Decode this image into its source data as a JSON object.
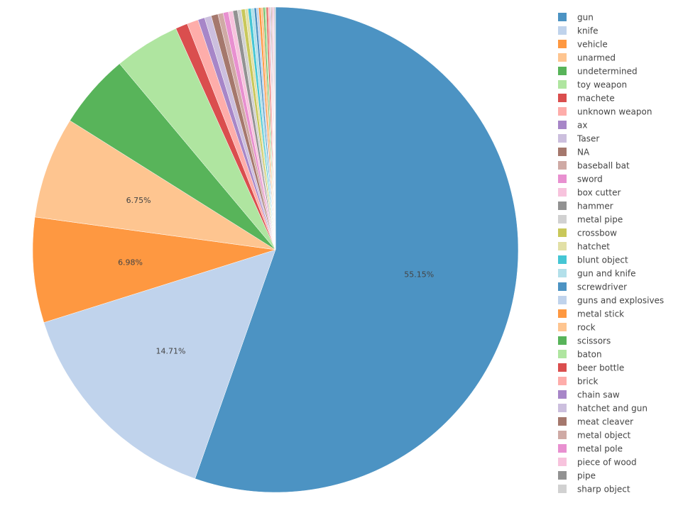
{
  "chart_data": {
    "type": "pie",
    "direction": "clockwise",
    "start": "top",
    "label_threshold_percent": 5,
    "legend_placement": "right",
    "slices": [
      {
        "label": "gun",
        "percent": 55.15,
        "color": "#4c93c3"
      },
      {
        "label": "knife",
        "percent": 14.71,
        "color": "#c0d3ec"
      },
      {
        "label": "vehicle",
        "percent": 6.98,
        "color": "#fe9841"
      },
      {
        "label": "unarmed",
        "percent": 6.75,
        "color": "#fec590"
      },
      {
        "label": "undetermined",
        "percent": 4.95,
        "color": "#58b45a"
      },
      {
        "label": "toy weapon",
        "percent": 4.35,
        "color": "#afe5a0"
      },
      {
        "label": "machete",
        "percent": 0.8,
        "color": "#da4e4e"
      },
      {
        "label": "unknown weapon",
        "percent": 0.75,
        "color": "#feadaa"
      },
      {
        "label": "ax",
        "percent": 0.45,
        "color": "#a786c8"
      },
      {
        "label": "Taser",
        "percent": 0.45,
        "color": "#ccbfde"
      },
      {
        "label": "NA",
        "percent": 0.45,
        "color": "#a5786d"
      },
      {
        "label": "baseball bat",
        "percent": 0.35,
        "color": "#cfaaa5"
      },
      {
        "label": "sword",
        "percent": 0.35,
        "color": "#e890d0"
      },
      {
        "label": "box cutter",
        "percent": 0.3,
        "color": "#f7c3dd"
      },
      {
        "label": "hammer",
        "percent": 0.3,
        "color": "#929292"
      },
      {
        "label": "metal pipe",
        "percent": 0.25,
        "color": "#d1d1d1"
      },
      {
        "label": "crossbow",
        "percent": 0.25,
        "color": "#c9c85a"
      },
      {
        "label": "hatchet",
        "percent": 0.2,
        "color": "#e2e0a6"
      },
      {
        "label": "blunt object",
        "percent": 0.2,
        "color": "#45c6d4"
      },
      {
        "label": "gun and knife",
        "percent": 0.2,
        "color": "#b3e0ea"
      },
      {
        "label": "screwdriver",
        "percent": 0.15,
        "color": "#4c93c3"
      },
      {
        "label": "guns and explosives",
        "percent": 0.15,
        "color": "#c0d3ec"
      },
      {
        "label": "metal stick",
        "percent": 0.15,
        "color": "#fe9841"
      },
      {
        "label": "rock",
        "percent": 0.15,
        "color": "#fec590"
      },
      {
        "label": "scissors",
        "percent": 0.1,
        "color": "#58b45a"
      },
      {
        "label": "baton",
        "percent": 0.1,
        "color": "#afe5a0"
      },
      {
        "label": "beer bottle",
        "percent": 0.1,
        "color": "#da4e4e"
      },
      {
        "label": "brick",
        "percent": 0.1,
        "color": "#feadaa"
      },
      {
        "label": "chain saw",
        "percent": 0.05,
        "color": "#a786c8"
      },
      {
        "label": "hatchet and gun",
        "percent": 0.05,
        "color": "#ccbfde"
      },
      {
        "label": "meat cleaver",
        "percent": 0.05,
        "color": "#a5786d"
      },
      {
        "label": "metal object",
        "percent": 0.05,
        "color": "#cfaaa5"
      },
      {
        "label": "metal pole",
        "percent": 0.05,
        "color": "#e890d0"
      },
      {
        "label": "piece of wood",
        "percent": 0.05,
        "color": "#f7c3dd"
      },
      {
        "label": "pipe",
        "percent": 0.05,
        "color": "#929292"
      },
      {
        "label": "sharp object",
        "percent": 0.05,
        "color": "#d1d1d1"
      }
    ]
  }
}
